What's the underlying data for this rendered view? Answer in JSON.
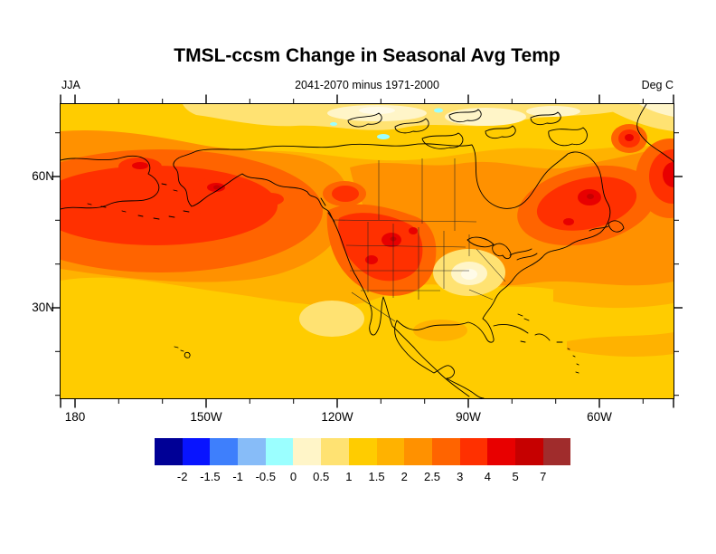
{
  "title": "TMSL-ccsm Change in Seasonal Avg Temp",
  "header": {
    "left": "JJA",
    "center": "2041-2070 minus 1971-2000",
    "right": "Deg C"
  },
  "axes": {
    "x_tick_labels": [
      "180",
      "150W",
      "120W",
      "90W",
      "60W"
    ],
    "y_tick_labels": [
      "60N",
      "30N"
    ]
  },
  "colorbar": {
    "tick_labels": [
      "-2",
      "-1.5",
      "-1",
      "-0.5",
      "0",
      "0.5",
      "1",
      "1.5",
      "2",
      "2.5",
      "3",
      "4",
      "5",
      "7"
    ],
    "colors": [
      "#000096",
      "#0814FF",
      "#3E7FFC",
      "#87BCF8",
      "#9BFFFF",
      "#FFF5C8",
      "#FFE272",
      "#FFCC00",
      "#FFB200",
      "#FF9100",
      "#FF6400",
      "#FF3000",
      "#E80000",
      "#C60000",
      "#A02C2C"
    ]
  },
  "map": {
    "lightest_patch_color": "#FFFBE8",
    "coastline_color": "#000000"
  },
  "chart_data": {
    "type": "heatmap",
    "title": "TMSL-ccsm Change in Seasonal Avg Temp",
    "subtitle": "2041-2070 minus 1971-2000",
    "season": "JJA",
    "units": "Deg C",
    "projection": "cylindrical lat-lon map of North America and adjacent oceans",
    "x_tick_labels": [
      "180",
      "150W",
      "120W",
      "90W",
      "60W"
    ],
    "y_tick_labels": [
      "60N",
      "30N"
    ],
    "lon_range_approx": [
      "183E",
      "43W"
    ],
    "lat_range_approx": [
      "9N",
      "77N"
    ],
    "contour_levels": [
      -2,
      -1.5,
      -1,
      -0.5,
      0,
      0.5,
      1,
      1.5,
      2,
      2.5,
      3,
      4,
      5,
      7
    ],
    "palette": [
      "#000096",
      "#0814FF",
      "#3E7FFC",
      "#87BCF8",
      "#9BFFFF",
      "#FFF5C8",
      "#FFE272",
      "#FFCC00",
      "#FFB200",
      "#FF9100",
      "#FF6400",
      "#FF3000",
      "#E80000",
      "#C60000",
      "#A02C2C"
    ],
    "legend_position": "bottom",
    "notable_features": [
      "Warming of +3 to +5 degC over the northeast Pacific around 40-55N",
      "Warming of +3 to +5 degC over the western US interior and Rockies",
      "Warming of +3 to +4 degC over Quebec/Labrador and far northeast edge of map",
      "Local minimum of +0.5 to +1 degC over the central/southeastern US (Missouri-Tennessee area)",
      "+1 to +1.5 degC over subtropical oceans, Gulf of Mexico and Caribbean",
      "0 to +1 degC along the Arctic edge with small patches below 0 (pale cyan) near the top boundary",
      "Small +2 to +3 degC patches over eastern Siberia, Alaska and the British Columbia coast"
    ]
  }
}
